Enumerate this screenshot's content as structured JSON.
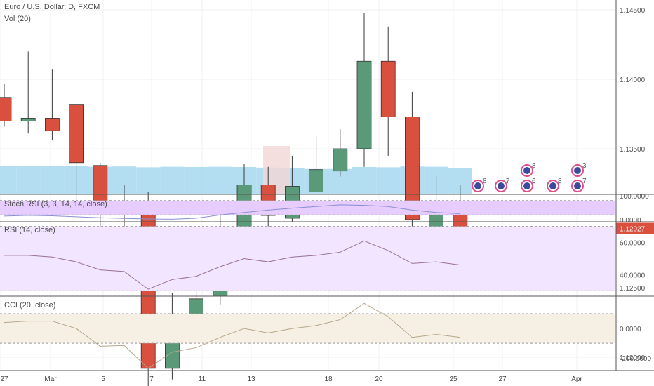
{
  "header": {
    "symbol_title": "Euro / U.S. Dollar, D, FXCM",
    "vol_label": "Vol (20)"
  },
  "price_axis": {
    "ticks": [
      "1.14500",
      "1.14000",
      "1.13500",
      "1.12500",
      "1.12000"
    ],
    "current_price": "1.12927",
    "colors": {
      "up": "#5b9a78",
      "down": "#d9503f",
      "price_line": "#d9503f"
    }
  },
  "indicators": {
    "stoch": {
      "label": "Stoch RSI (3, 3, 14, 14, close)",
      "ticks": [
        "100.0000",
        "0.0000"
      ]
    },
    "rsi": {
      "label": "RSI (14, close)",
      "ticks": [
        "60.0000",
        "40.0000"
      ]
    },
    "cci": {
      "label": "CCI (20, close)",
      "ticks": [
        "0.0000",
        "-200.0000"
      ]
    }
  },
  "date_axis": {
    "labels": [
      "27",
      "Mar",
      "5",
      "7",
      "11",
      "13",
      "18",
      "20",
      "25",
      "27",
      "Apr"
    ]
  },
  "events": {
    "counts": [
      "8",
      "7",
      "6",
      "8",
      "7",
      "8",
      "3"
    ]
  },
  "chart_data": {
    "type": "candlestick",
    "title": "Euro / U.S. Dollar, D, FXCM",
    "candles": [
      {
        "o": 1.1387,
        "h": 1.1397,
        "l": 1.1366,
        "c": 1.137
      },
      {
        "o": 1.137,
        "h": 1.142,
        "l": 1.1361,
        "c": 1.1372
      },
      {
        "o": 1.1372,
        "h": 1.1407,
        "l": 1.1356,
        "c": 1.1363
      },
      {
        "o": 1.1382,
        "h": 1.1382,
        "l": 1.1308,
        "c": 1.134
      },
      {
        "o": 1.1338,
        "h": 1.134,
        "l": 1.1289,
        "c": 1.1308
      },
      {
        "o": 1.1307,
        "h": 1.1324,
        "l": 1.1285,
        "c": 1.1307
      },
      {
        "o": 1.1305,
        "h": 1.1319,
        "l": 1.1176,
        "c": 1.1192
      },
      {
        "o": 1.1192,
        "h": 1.1246,
        "l": 1.1184,
        "c": 1.1231
      },
      {
        "o": 1.123,
        "h": 1.1258,
        "l": 1.1222,
        "c": 1.1242
      },
      {
        "o": 1.1244,
        "h": 1.1305,
        "l": 1.1238,
        "c": 1.1285
      },
      {
        "o": 1.1286,
        "h": 1.1339,
        "l": 1.1278,
        "c": 1.1324
      },
      {
        "o": 1.1324,
        "h": 1.1337,
        "l": 1.1294,
        "c": 1.1302
      },
      {
        "o": 1.13,
        "h": 1.1345,
        "l": 1.1297,
        "c": 1.1323
      },
      {
        "o": 1.1319,
        "h": 1.1359,
        "l": 1.1319,
        "c": 1.1335
      },
      {
        "o": 1.1334,
        "h": 1.1364,
        "l": 1.133,
        "c": 1.135
      },
      {
        "o": 1.135,
        "h": 1.1448,
        "l": 1.1337,
        "c": 1.1413
      },
      {
        "o": 1.1413,
        "h": 1.1438,
        "l": 1.1345,
        "c": 1.1373
      },
      {
        "o": 1.1373,
        "h": 1.1391,
        "l": 1.1276,
        "c": 1.1299
      },
      {
        "o": 1.1289,
        "h": 1.133,
        "l": 1.1289,
        "c": 1.131
      },
      {
        "o": 1.1309,
        "h": 1.1324,
        "l": 1.128,
        "c": 1.1293
      }
    ],
    "current_price": 1.12927,
    "price_ticks": [
      1.145,
      1.14,
      1.135,
      1.125,
      1.12
    ],
    "volume_sma": [
      1.0,
      1.0,
      1.0,
      0.98,
      0.96,
      0.97,
      0.94,
      0.96,
      0.95,
      0.96,
      0.95,
      0.93,
      0.9,
      0.88,
      0.88,
      0.95,
      0.94,
      0.97,
      0.96,
      0.9
    ],
    "stoch_rsi": {
      "k": [
        15,
        18,
        16,
        12,
        8,
        5,
        3,
        2,
        6,
        20,
        30,
        40,
        48,
        55,
        62,
        60,
        55,
        40,
        30,
        25
      ],
      "upper": 80,
      "lower": 20,
      "ylim": [
        0,
        100
      ]
    },
    "rsi": {
      "values": [
        52,
        52,
        51,
        48,
        43,
        42,
        31,
        37,
        39,
        45,
        50,
        48,
        51,
        52,
        54,
        61,
        55,
        47,
        48,
        46
      ],
      "upper": 70,
      "lower": 30,
      "ylim": [
        28,
        72
      ]
    },
    "cci": {
      "values": [
        40,
        50,
        50,
        0,
        -120,
        -115,
        -270,
        -160,
        -130,
        -60,
        0,
        -30,
        0,
        20,
        60,
        170,
        80,
        -60,
        -40,
        -60
      ],
      "upper": 100,
      "lower": -100,
      "ylim": [
        -280,
        200
      ]
    }
  }
}
